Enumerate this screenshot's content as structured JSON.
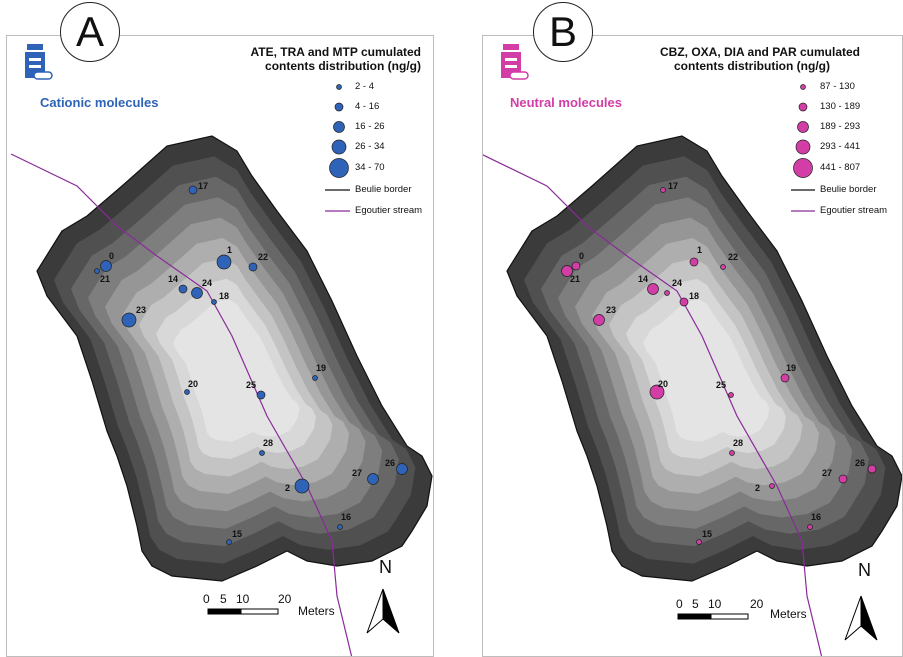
{
  "panels": [
    {
      "letter": "A",
      "title_line1": "ATE, TRA and MTP cumulated",
      "title_line2": "contents distribution (ng/g)",
      "subtitle": "Cationic molecules",
      "accent": "#2e63b8",
      "legend": [
        "2 - 4",
        "4 - 16",
        "16 - 26",
        "26 - 34",
        "34 - 70"
      ],
      "border_label": "Beulie border",
      "stream_label": "Egoutier stream",
      "sites": [
        {
          "id": "17",
          "cls": 1
        },
        {
          "id": "0",
          "cls": 2
        },
        {
          "id": "21",
          "cls": 0
        },
        {
          "id": "1",
          "cls": 3
        },
        {
          "id": "22",
          "cls": 1
        },
        {
          "id": "14",
          "cls": 1
        },
        {
          "id": "24",
          "cls": 2
        },
        {
          "id": "18",
          "cls": 0
        },
        {
          "id": "23",
          "cls": 3
        },
        {
          "id": "19",
          "cls": 0
        },
        {
          "id": "20",
          "cls": 0
        },
        {
          "id": "25",
          "cls": 1
        },
        {
          "id": "28",
          "cls": 0
        },
        {
          "id": "27",
          "cls": 2
        },
        {
          "id": "26",
          "cls": 2
        },
        {
          "id": "2",
          "cls": 3
        },
        {
          "id": "16",
          "cls": 0
        },
        {
          "id": "15",
          "cls": 0
        }
      ]
    },
    {
      "letter": "B",
      "title_line1": "CBZ, OXA, DIA and PAR  cumulated",
      "title_line2": "contents distribution (ng/g)",
      "subtitle": "Neutral molecules",
      "accent": "#d23ea6",
      "legend": [
        "87 - 130",
        "130 - 189",
        "189 - 293",
        "293 - 441",
        "441 - 807"
      ],
      "border_label": "Beulie border",
      "stream_label": "Egoutier stream",
      "sites": [
        {
          "id": "17",
          "cls": 0
        },
        {
          "id": "0",
          "cls": 1
        },
        {
          "id": "21",
          "cls": 2
        },
        {
          "id": "1",
          "cls": 1
        },
        {
          "id": "22",
          "cls": 0
        },
        {
          "id": "14",
          "cls": 2
        },
        {
          "id": "24",
          "cls": 0
        },
        {
          "id": "18",
          "cls": 1
        },
        {
          "id": "23",
          "cls": 2
        },
        {
          "id": "19",
          "cls": 1
        },
        {
          "id": "20",
          "cls": 3
        },
        {
          "id": "25",
          "cls": 0
        },
        {
          "id": "28",
          "cls": 0
        },
        {
          "id": "27",
          "cls": 1
        },
        {
          "id": "26",
          "cls": 1
        },
        {
          "id": "2",
          "cls": 0
        },
        {
          "id": "16",
          "cls": 0
        },
        {
          "id": "15",
          "cls": 0
        }
      ]
    }
  ],
  "scale": {
    "ticks": [
      "0",
      "5",
      "10",
      "20"
    ],
    "unit": "Meters"
  },
  "north": "N"
}
